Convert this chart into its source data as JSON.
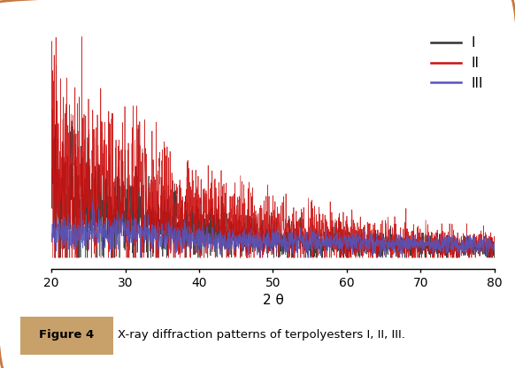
{
  "xlabel": "2 θ",
  "xlim": [
    20,
    80
  ],
  "xticks": [
    20,
    30,
    40,
    50,
    60,
    70,
    80
  ],
  "legend_labels": [
    "I",
    "II",
    "III"
  ],
  "color_I": "#333333",
  "color_II": "#cc1111",
  "color_III": "#5555bb",
  "seed": 12345,
  "n_points": 2000,
  "caption_label": "Figure 4",
  "caption_text": "  X-ray diffraction patterns of terpolyesters I, II, III.",
  "caption_bg": "#c8a06a",
  "border_color": "#c87840",
  "fig_bg": "#ffffff",
  "noise_scale_I": 0.55,
  "noise_scale_II": 0.65,
  "noise_scale_III": 0.35
}
